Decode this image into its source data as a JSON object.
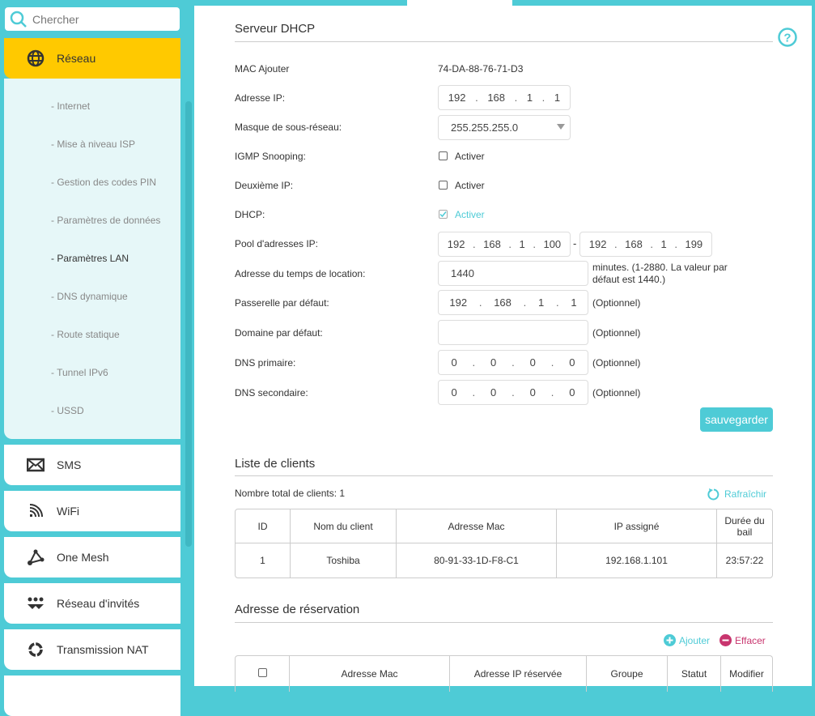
{
  "sidebar": {
    "search_placeholder": "Chercher",
    "active": {
      "label": "Réseau",
      "icon": "globe-icon"
    },
    "subitems": [
      "- Internet",
      "- Mise à niveau ISP",
      "- Gestion des codes PIN",
      "- Paramètres de données",
      "- Paramètres LAN",
      "- DNS dynamique",
      "- Route statique",
      "- Tunnel IPv6",
      "- USSD"
    ],
    "active_subitem": "- Paramètres LAN",
    "items": [
      {
        "label": "SMS",
        "icon": "envelope-icon"
      },
      {
        "label": "WiFi",
        "icon": "wifi-icon"
      },
      {
        "label": "One Mesh",
        "icon": "mesh-icon"
      },
      {
        "label": "Réseau d'invités",
        "icon": "guests-icon"
      },
      {
        "label": "Transmission NAT",
        "icon": "nat-icon"
      }
    ]
  },
  "dhcp": {
    "title": "Serveur DHCP",
    "mac_label": "MAC Ajouter",
    "mac_value": "74-DA-88-76-71-D3",
    "ip_label": "Adresse IP:",
    "ip": [
      "192",
      "168",
      "1",
      "1"
    ],
    "mask_label": "Masque de sous-réseau:",
    "mask_value": "255.255.255.0",
    "igmp_label": "IGMP Snooping:",
    "igmp_option": "Activer",
    "igmp_checked": false,
    "second_ip_label": "Deuxième IP:",
    "second_ip_option": "Activer",
    "second_ip_checked": false,
    "dhcp_label": "DHCP:",
    "dhcp_option": "Activer",
    "dhcp_checked": true,
    "pool_label": "Pool d'adresses IP:",
    "pool_start": [
      "192",
      "168",
      "1",
      "100"
    ],
    "pool_end": [
      "192",
      "168",
      "1",
      "199"
    ],
    "pool_sep": "-",
    "lease_label": "Adresse du temps de location:",
    "lease_value": "1440",
    "lease_note": "minutes. (1-2880. La valeur par défaut est 1440.)",
    "gateway_label": "Passerelle par défaut:",
    "gateway": [
      "192",
      "168",
      "1",
      "1"
    ],
    "domain_label": "Domaine par défaut:",
    "domain_value": "",
    "dns1_label": "DNS primaire:",
    "dns1": [
      "0",
      "0",
      "0",
      "0"
    ],
    "dns2_label": "DNS secondaire:",
    "dns2": [
      "0",
      "0",
      "0",
      "0"
    ],
    "optional": "(Optionnel)",
    "save": "sauvegarder"
  },
  "clients": {
    "title": "Liste de clients",
    "total": "Nombre total de clients: 1",
    "refresh": "Rafraîchir",
    "headers": [
      "ID",
      "Nom du client",
      "Adresse Mac",
      "IP assigné",
      "Durée du bail"
    ],
    "rows": [
      [
        "1",
        "Toshiba",
        "80-91-33-1D-F8-C1",
        "192.168.1.101",
        "23:57:22"
      ]
    ]
  },
  "reservation": {
    "title": "Adresse de réservation",
    "add": "Ajouter",
    "delete": "Effacer",
    "headers": [
      "Adresse Mac",
      "Adresse IP réservée",
      "Groupe",
      "Statut",
      "Modifier"
    ]
  },
  "colors": {
    "accent": "#4ecbd6",
    "active": "#ffc900",
    "delete": "#c8356e"
  }
}
